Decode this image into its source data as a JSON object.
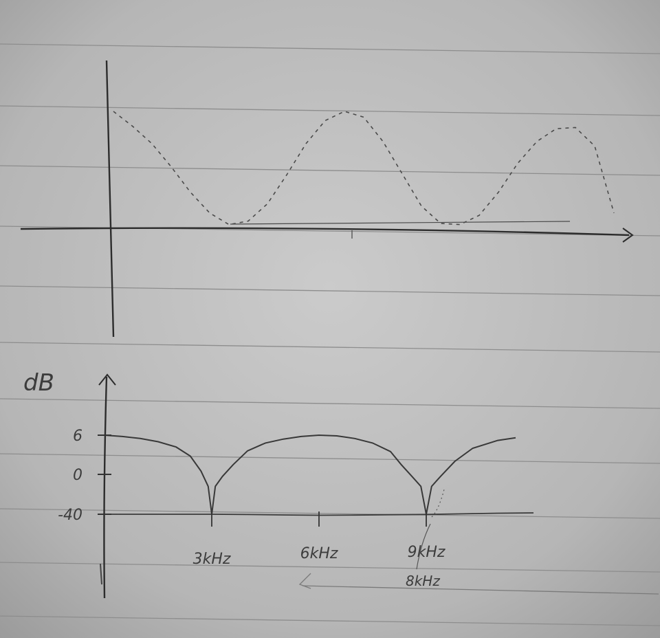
{
  "chart_data": [
    {
      "type": "line",
      "title": "",
      "xlabel": "",
      "ylabel": "",
      "grid": false,
      "series": [
        {
          "style": "dashed",
          "x": [
            0,
            0.5,
            1.0,
            1.5,
            2.0,
            2.5,
            3.0,
            3.5,
            4.0,
            4.5,
            5.0,
            5.5,
            6.0,
            6.5,
            7.0,
            7.5,
            8.0,
            8.5,
            9.0,
            9.5,
            10.0,
            10.5,
            11.0,
            11.5,
            12.0,
            12.5,
            13.0
          ],
          "y": [
            1.0,
            0.87,
            0.72,
            0.52,
            0.3,
            0.12,
            0.02,
            0.05,
            0.2,
            0.45,
            0.72,
            0.92,
            1.0,
            0.95,
            0.74,
            0.46,
            0.18,
            0.03,
            0.02,
            0.1,
            0.3,
            0.55,
            0.74,
            0.85,
            0.86,
            0.7,
            0.12
          ]
        }
      ]
    },
    {
      "type": "line",
      "title": "",
      "xlabel": "",
      "ylabel": "dB",
      "grid": false,
      "y_ticks": [
        "6",
        "0",
        "-40"
      ],
      "x_ticks": [
        {
          "label": "3kHz",
          "x": 3
        },
        {
          "label": "6kHz",
          "x": 6
        },
        {
          "label": "9kHz",
          "x": 9
        }
      ],
      "annotations": [
        "8kHz"
      ],
      "series": [
        {
          "style": "solid",
          "x": [
            0,
            0.5,
            1.0,
            1.5,
            2.0,
            2.4,
            2.7,
            2.9,
            3.0,
            3.1,
            3.3,
            3.6,
            4.0,
            4.5,
            5.0,
            5.5,
            6.0,
            6.5,
            7.0,
            7.5,
            8.0,
            8.3,
            8.6,
            8.85,
            9.0,
            9.15,
            9.4,
            9.8,
            10.3,
            11.0,
            11.5
          ],
          "y": [
            6,
            5.8,
            5.5,
            5.0,
            4.2,
            2.8,
            0.5,
            -12,
            -40,
            -12,
            -2,
            1.5,
            3.6,
            4.8,
            5.4,
            5.8,
            6.0,
            5.9,
            5.5,
            4.8,
            3.5,
            1.5,
            -2,
            -12,
            -40,
            -12,
            -2,
            2.0,
            4.0,
            5.2,
            5.6
          ]
        },
        {
          "style": "solid",
          "x": [
            0,
            1,
            2,
            3,
            4,
            5,
            6,
            7,
            8,
            9,
            10,
            11,
            12
          ],
          "y": [
            -40,
            -40,
            -40,
            -40,
            -40.3,
            -40.7,
            -41,
            -40.8,
            -40.5,
            -40.2,
            -39.6,
            -39.0,
            -38.6
          ]
        }
      ]
    }
  ]
}
